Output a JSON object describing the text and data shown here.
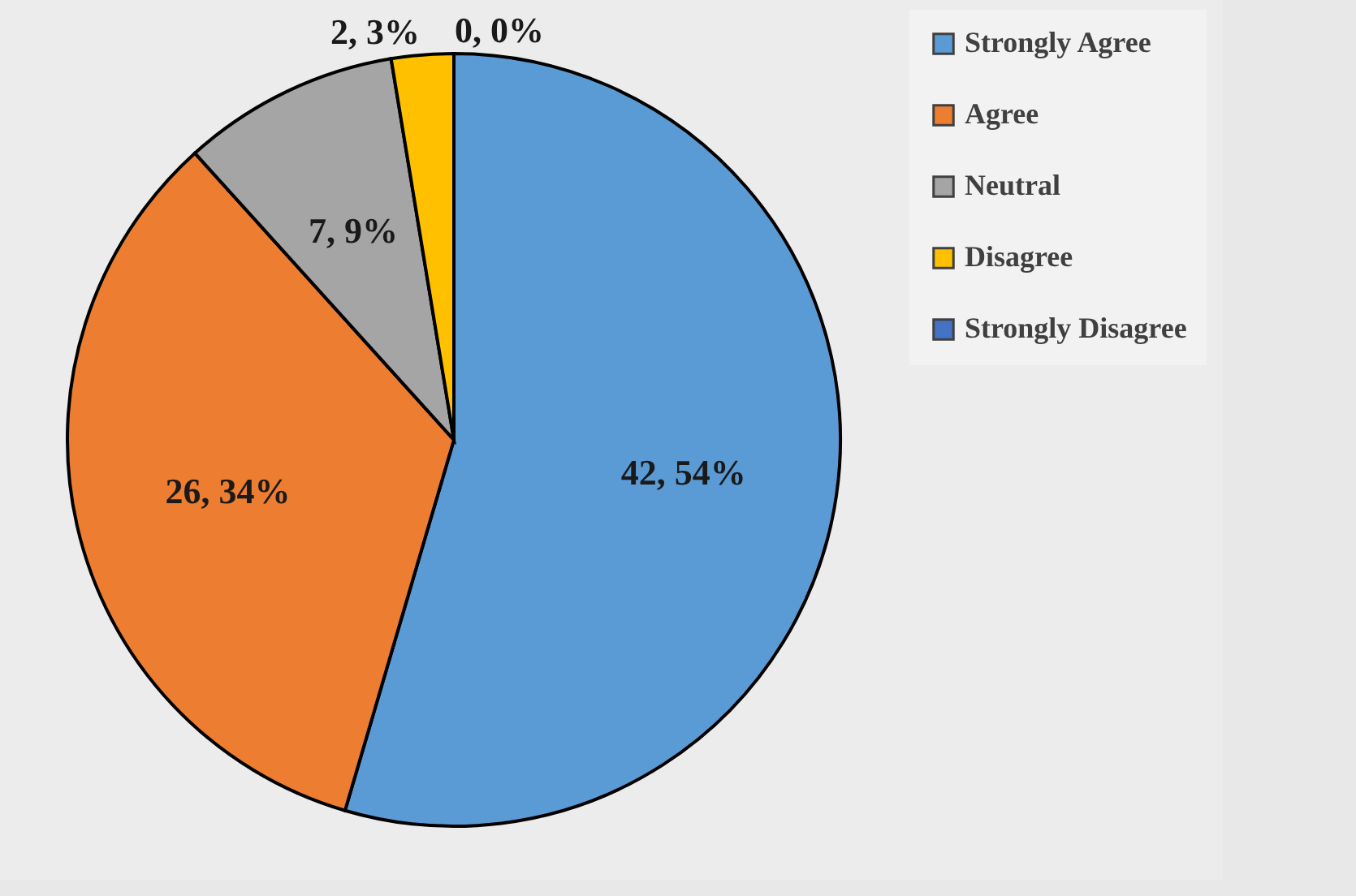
{
  "chart_data": {
    "type": "pie",
    "categories": [
      "Strongly Agree",
      "Agree",
      "Neutral",
      "Disagree",
      "Strongly Disagree"
    ],
    "values": [
      42,
      26,
      7,
      2,
      0
    ],
    "colors": [
      "#5b9bd5",
      "#ed7d31",
      "#a5a5a5",
      "#ffc000",
      "#4472c4"
    ],
    "value_labels": [
      "42, 54%",
      "26, 34%",
      "7, 9%",
      "2, 3%",
      "0, 0%"
    ],
    "legend": "right"
  }
}
